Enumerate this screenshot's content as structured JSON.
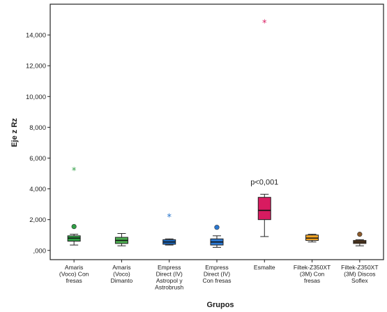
{
  "chart_data": {
    "type": "boxplot",
    "title": "",
    "xlabel": "Grupos",
    "ylabel": "Eje z Rz",
    "ylim": [
      -0.6,
      16.0
    ],
    "yticks": [
      ",000",
      "2,000",
      "4,000",
      "6,000",
      "8,000",
      "10,000",
      "12,000",
      "14,000"
    ],
    "ytick_values": [
      0,
      2,
      4,
      6,
      8,
      10,
      12,
      14
    ],
    "grid": false,
    "annotation": {
      "text": "p<0,001",
      "group_index": 4
    },
    "categories": [
      [
        "Amaris",
        "(Voco) Con",
        "fresas"
      ],
      [
        "Amaris",
        "(Voco)",
        "Dimanto"
      ],
      [
        "Empress",
        "Direct (IV)",
        "Astropol y",
        "Astrobrush"
      ],
      [
        "Empress",
        "Direct (IV)",
        "Con fresas"
      ],
      [
        "Esmalte"
      ],
      [
        "Filtek-Z350XT",
        "(3M) Con",
        "fresas"
      ],
      [
        "Filtek-Z350XT",
        "(3M) Discos",
        "Soflex"
      ]
    ],
    "boxes": [
      {
        "min": 0.35,
        "q1": 0.6,
        "median": 0.8,
        "q3": 0.95,
        "max": 1.05,
        "color": "#2f9e44",
        "outliers": [
          1.55
        ],
        "extremes": [
          5.2
        ]
      },
      {
        "min": 0.3,
        "q1": 0.45,
        "median": 0.65,
        "q3": 0.85,
        "max": 1.1,
        "color": "#4caf50",
        "outliers": [],
        "extremes": []
      },
      {
        "min": 0.35,
        "q1": 0.4,
        "median": 0.55,
        "q3": 0.7,
        "max": 0.75,
        "color": "#1f6fc9",
        "outliers": [],
        "extremes": [
          2.2
        ]
      },
      {
        "min": 0.2,
        "q1": 0.35,
        "median": 0.55,
        "q3": 0.75,
        "max": 0.95,
        "color": "#2a78d2",
        "outliers": [
          1.5
        ],
        "extremes": []
      },
      {
        "min": 0.9,
        "q1": 2.0,
        "median": 2.6,
        "q3": 3.45,
        "max": 3.65,
        "color": "#d81b60",
        "outliers": [],
        "extremes": [
          14.8
        ]
      },
      {
        "min": 0.55,
        "q1": 0.65,
        "median": 0.8,
        "q3": 1.0,
        "max": 1.05,
        "color": "#f5a623",
        "outliers": [],
        "extremes": []
      },
      {
        "min": 0.3,
        "q1": 0.45,
        "median": 0.55,
        "q3": 0.65,
        "max": 0.7,
        "color": "#8b5a2b",
        "outliers": [
          1.05
        ],
        "extremes": []
      }
    ]
  }
}
